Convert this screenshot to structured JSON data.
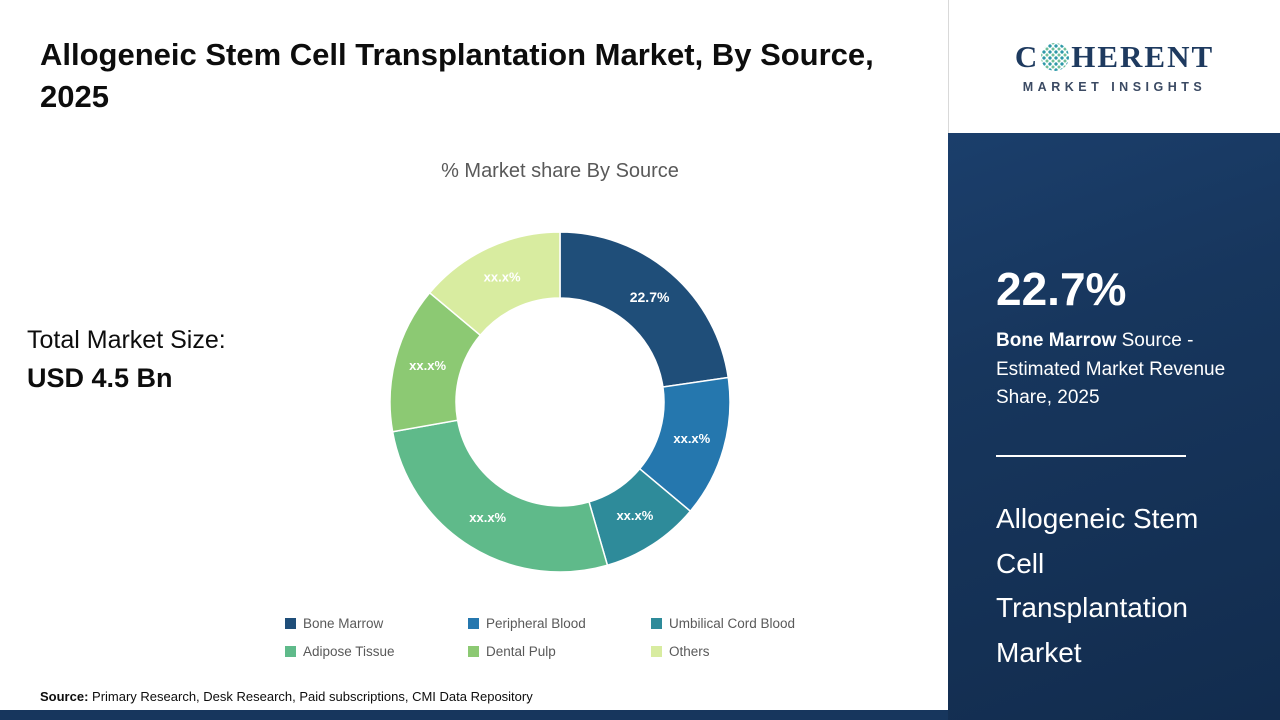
{
  "header": {
    "title": "Allogeneic Stem Cell Transplantation Market, By Source, 2025"
  },
  "left": {
    "total_label": "Total Market Size:",
    "total_value": "USD 4.5 Bn"
  },
  "chart_data": {
    "type": "pie",
    "donut": true,
    "title": "% Market share By Source",
    "legend_position": "bottom",
    "segments": [
      {
        "label": "Bone Marrow",
        "value": 22.7,
        "display": "22.7%",
        "color": "#1f4e79"
      },
      {
        "label": "Peripheral Blood",
        "value": 13.4,
        "display": "xx.x%",
        "color": "#2577ae"
      },
      {
        "label": "Umbilical Cord Blood",
        "value": 9.4,
        "display": "xx.x%",
        "color": "#2e8b9a"
      },
      {
        "label": "Adipose Tissue",
        "value": 26.7,
        "display": "xx.x%",
        "color": "#5fba8a"
      },
      {
        "label": "Dental Pulp",
        "value": 13.9,
        "display": "xx.x%",
        "color": "#8cc973"
      },
      {
        "label": "Others",
        "value": 13.9,
        "display": "xx.x%",
        "color": "#d8eca0"
      }
    ]
  },
  "sidebar": {
    "logo": {
      "brand_prefix": "C",
      "brand_suffix": "HERENT",
      "globe_icon": "dotted-globe-icon",
      "tagline": "MARKET INSIGHTS"
    },
    "stat_value": "22.7%",
    "stat_bold": "Bone Marrow",
    "stat_rest": " Source - Estimated Market Revenue Share, 2025",
    "market_name": "Allogeneic Stem Cell Transplantation Market",
    "panel_color": "#17365d"
  },
  "footer": {
    "source_bold": "Source:",
    "source_text": " Primary Research, Desk Research, Paid subscriptions, CMI Data Repository"
  }
}
